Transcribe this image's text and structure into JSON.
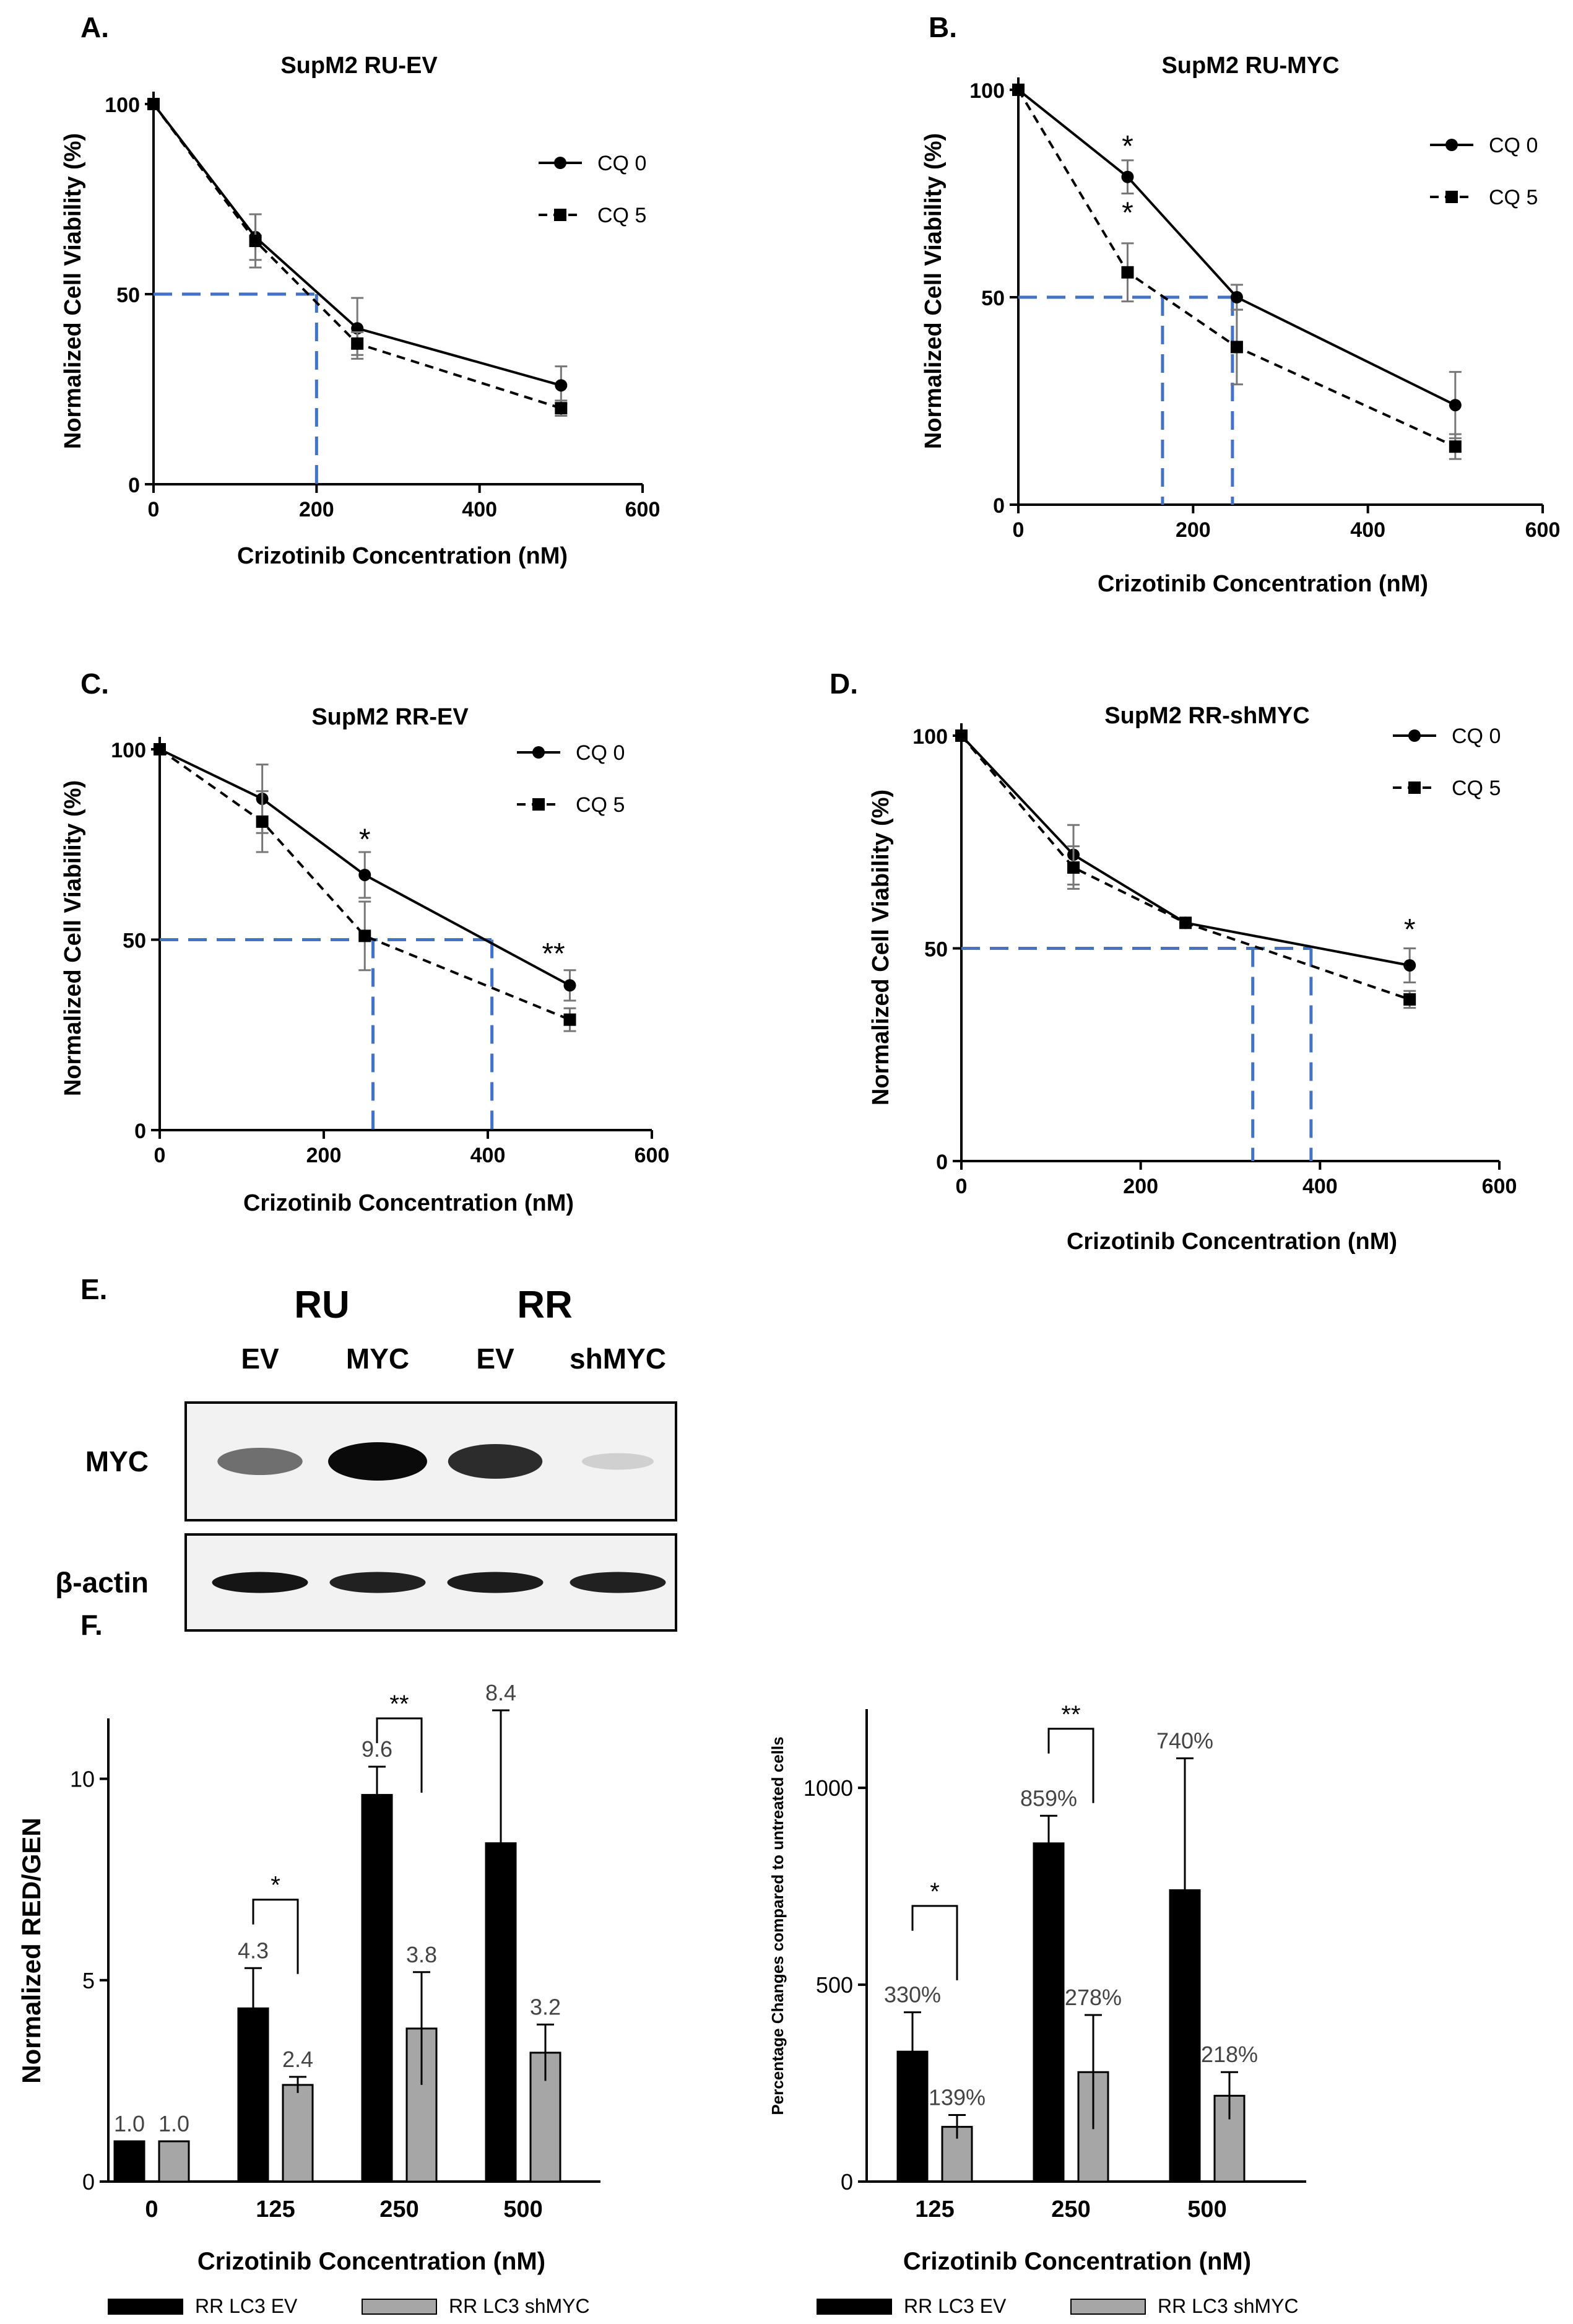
{
  "chart_data": [
    {
      "panel": "A.",
      "type": "line",
      "title": "SupM2 RU-EV",
      "xlabel": "Crizotinib  Concentration  (nM)",
      "ylabel": "Normalized Cell Viability  (%)",
      "xlim": [
        0,
        600
      ],
      "ylim": [
        0,
        100
      ],
      "xticks": [
        0,
        200,
        400,
        600
      ],
      "yticks": [
        0,
        50,
        100
      ],
      "legend_position": "top-right",
      "x": [
        0,
        125,
        250,
        500
      ],
      "series": [
        {
          "name": "CQ 0",
          "values": [
            100,
            65,
            41,
            26
          ],
          "err": [
            1,
            6,
            8,
            5
          ],
          "marker": "circle",
          "line": "solid"
        },
        {
          "name": "CQ 5",
          "values": [
            100,
            64,
            37,
            20
          ],
          "err": [
            1,
            7,
            3,
            2
          ],
          "marker": "square",
          "line": "dashed"
        }
      ],
      "ic50_lines": [
        200
      ],
      "annotations": []
    },
    {
      "panel": "B.",
      "type": "line",
      "title": "SupM2 RU-MYC",
      "xlabel": "Crizotinib  Concentration  (nM)",
      "ylabel": "Normalized Cell Viability  (%)",
      "xlim": [
        0,
        600
      ],
      "ylim": [
        0,
        100
      ],
      "xticks": [
        0,
        200,
        400,
        600
      ],
      "yticks": [
        0,
        50,
        100
      ],
      "legend_position": "top-right",
      "x": [
        0,
        125,
        250,
        500
      ],
      "series": [
        {
          "name": "CQ 0",
          "values": [
            100,
            79,
            50,
            24
          ],
          "err": [
            1,
            4,
            3,
            8
          ],
          "marker": "circle",
          "line": "solid"
        },
        {
          "name": "CQ 5",
          "values": [
            100,
            56,
            38,
            14
          ],
          "err": [
            1,
            7,
            9,
            3
          ],
          "marker": "square",
          "line": "dashed"
        }
      ],
      "ic50_lines": [
        165,
        245
      ],
      "annotations": [
        {
          "text": "*",
          "x": 125,
          "y": 87
        },
        {
          "text": "*",
          "x": 125,
          "y": 71
        }
      ]
    },
    {
      "panel": "C.",
      "type": "line",
      "title": "SupM2 RR-EV",
      "xlabel": "Crizotinib  Concentration  (nM)",
      "ylabel": "Normalized Cell Viability  (%)",
      "xlim": [
        0,
        600
      ],
      "ylim": [
        0,
        100
      ],
      "xticks": [
        0,
        200,
        400,
        600
      ],
      "yticks": [
        0,
        50,
        100
      ],
      "legend_position": "top-right",
      "x": [
        0,
        125,
        250,
        500
      ],
      "series": [
        {
          "name": "CQ 0",
          "values": [
            100,
            87,
            67,
            38
          ],
          "err": [
            1,
            9,
            6,
            4
          ],
          "marker": "circle",
          "line": "solid"
        },
        {
          "name": "CQ 5",
          "values": [
            100,
            81,
            51,
            29
          ],
          "err": [
            1,
            8,
            9,
            3
          ],
          "marker": "square",
          "line": "dashed"
        }
      ],
      "ic50_lines": [
        260,
        405
      ],
      "annotations": [
        {
          "text": "*",
          "x": 250,
          "y": 77
        },
        {
          "text": "**",
          "x": 480,
          "y": 47
        }
      ]
    },
    {
      "panel": "D.",
      "type": "line",
      "title": "SupM2 RR-shMYC",
      "xlabel": "Crizotinib  Concentration  (nM)",
      "ylabel": "Normalized Cell Viability (%)",
      "xlim": [
        0,
        600
      ],
      "ylim": [
        0,
        100
      ],
      "xticks": [
        0,
        200,
        400,
        600
      ],
      "yticks": [
        0,
        50,
        100
      ],
      "legend_position": "top-right",
      "x": [
        0,
        125,
        250,
        500
      ],
      "series": [
        {
          "name": "CQ 0",
          "values": [
            100,
            72,
            56,
            46
          ],
          "err": [
            1,
            7,
            1,
            4
          ],
          "marker": "circle",
          "line": "solid"
        },
        {
          "name": "CQ 5",
          "values": [
            100,
            69,
            56,
            38
          ],
          "err": [
            1,
            5,
            1,
            2
          ],
          "marker": "square",
          "line": "dashed"
        }
      ],
      "ic50_lines": [
        325,
        390
      ],
      "annotations": [
        {
          "text": "*",
          "x": 500,
          "y": 55
        }
      ]
    },
    {
      "panel": "F.",
      "type": "bar",
      "title": "",
      "xlabel": "Crizotinib  Concentration  (nM)",
      "ylabel": "Normalized RED/GEN",
      "ylim": [
        0,
        11.5
      ],
      "yticks": [
        0,
        5,
        10
      ],
      "categories": [
        "0",
        "125",
        "250",
        "500"
      ],
      "legend_position": "bottom",
      "series": [
        {
          "name": "RR LC3 EV",
          "color": "#000000",
          "values": [
            1.0,
            4.3,
            9.6,
            8.4
          ],
          "err": [
            0,
            1.0,
            0.7,
            3.3
          ],
          "labels": [
            "1.0",
            "4.3",
            "9.6",
            "8.4"
          ]
        },
        {
          "name": "RR LC3 shMYC",
          "color": "#a6a6a6",
          "values": [
            1.0,
            2.4,
            3.8,
            3.2
          ],
          "err": [
            0,
            0.2,
            1.4,
            0.7
          ],
          "labels": [
            "1.0",
            "2.4",
            "3.8",
            "3.2"
          ]
        }
      ],
      "significance": [
        {
          "category": "125",
          "text": "*",
          "y": 7.0
        },
        {
          "category": "250",
          "text": "**",
          "y": 11.5
        }
      ]
    },
    {
      "panel": "",
      "type": "bar",
      "title": "",
      "xlabel": "Crizotinib  Concentration  (nM)",
      "ylabel": "Percentage  Changes compared to untreated cells",
      "ylim": [
        0,
        1200
      ],
      "yticks": [
        0,
        500,
        1000
      ],
      "categories": [
        "125",
        "250",
        "500"
      ],
      "legend_position": "bottom",
      "series": [
        {
          "name": "RR LC3 EV",
          "color": "#000000",
          "values": [
            330,
            859,
            740
          ],
          "err": [
            100,
            70,
            335
          ],
          "labels": [
            "330%",
            "859%",
            "740%"
          ]
        },
        {
          "name": "RR LC3 shMYC",
          "color": "#a6a6a6",
          "values": [
            139,
            278,
            218
          ],
          "err": [
            30,
            145,
            60
          ],
          "labels": [
            "139%",
            "278%",
            "218%"
          ]
        }
      ],
      "significance": [
        {
          "category": "125",
          "text": "*",
          "y": 700
        },
        {
          "category": "250",
          "text": "**",
          "y": 1150
        }
      ]
    }
  ],
  "blot": {
    "panel": "E.",
    "groups": [
      "RU",
      "RR"
    ],
    "lanes": [
      "EV",
      "MYC",
      "EV",
      "shMYC"
    ],
    "rows": [
      "MYC",
      "β-actin"
    ],
    "intensity": {
      "MYC": [
        0.55,
        1.0,
        0.85,
        0.12
      ],
      "β-actin": [
        0.95,
        0.9,
        0.92,
        0.9
      ]
    }
  }
}
